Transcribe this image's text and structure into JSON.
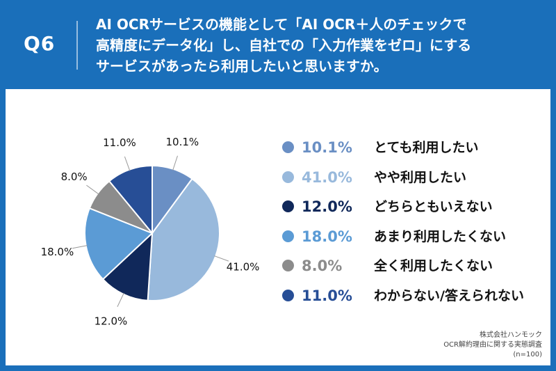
{
  "header": {
    "question_label": "Q6",
    "question_lines": [
      "AI OCRサービスの機能として「AI OCR＋人のチェックで",
      "高精度にデータ化」し、自社での「入力作業をゼロ」にする",
      "サービスがあったら利用したいと思いますか。"
    ]
  },
  "chart_data": {
    "type": "pie",
    "start_angle_deg": 0,
    "direction": "clockwise",
    "slices": [
      {
        "label": "とても利用したい",
        "value": 10.1,
        "display": "10.1%",
        "color": "#6a8fc4"
      },
      {
        "label": "やや利用したい",
        "value": 41.0,
        "display": "41.0%",
        "color": "#98b9dc"
      },
      {
        "label": "どちらともいえない",
        "value": 12.0,
        "display": "12.0%",
        "color": "#10285a"
      },
      {
        "label": "あまり利用したくない",
        "value": 18.0,
        "display": "18.0%",
        "color": "#5b9bd5"
      },
      {
        "label": "全く利用したくない",
        "value": 8.0,
        "display": "8.0%",
        "color": "#8c8c8c"
      },
      {
        "label": "わからない/答えられない",
        "value": 11.0,
        "display": "11.0%",
        "color": "#274e96"
      }
    ],
    "legend_position": "right"
  },
  "source": {
    "company": "株式会社ハンモック",
    "survey": "OCR解約理由に関する実態調査",
    "sample": "(n=100)"
  }
}
